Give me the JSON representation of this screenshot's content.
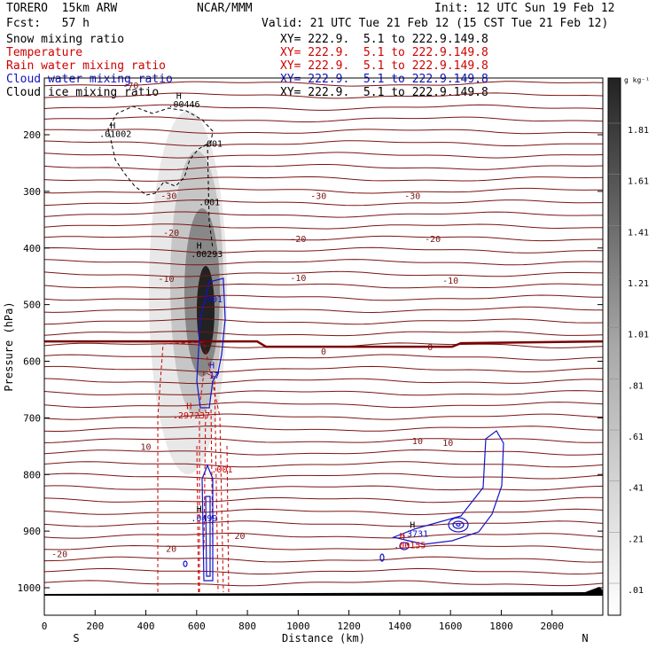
{
  "header": {
    "model": "TORERO  15km ARW",
    "center": "NCAR/MMM",
    "init": "Init: 12 UTC Sun 19 Feb 12",
    "fcst": "Fcst:   57 h",
    "valid": "Valid: 21 UTC Tue 21 Feb 12 (15 CST Tue 21 Feb 12)"
  },
  "legend": [
    {
      "name": "Snow mixing ratio",
      "xy": "XY= 222.9.  5.1 to 222.9.149.8",
      "color": "#000000"
    },
    {
      "name": "Temperature",
      "xy": "XY= 222.9.  5.1 to 222.9.149.8",
      "color": "#d00000"
    },
    {
      "name": "Rain water mixing ratio",
      "xy": "XY= 222.9.  5.1 to 222.9.149.8",
      "color": "#d00000"
    },
    {
      "name": "Cloud water mixing ratio",
      "xy": "XY= 222.9.  5.1 to 222.9.149.8",
      "color": "#1010c0"
    },
    {
      "name": "Cloud ice mixing ratio",
      "xy": "XY= 222.9.  5.1 to 222.9.149.8",
      "color": "#000000"
    }
  ],
  "colorbar": {
    "unit": "g kg⁻¹",
    "labels": [
      "1.81",
      "1.61",
      "1.41",
      "1.21",
      "1.01",
      ".81",
      ".61",
      ".41",
      ".21",
      ".01"
    ]
  },
  "chart_data": {
    "type": "contour",
    "title": "Vertical cross section",
    "xlabel": "Distance (km)",
    "ylabel": "Pressure (hPa)",
    "xlim": [
      0,
      2200
    ],
    "ylim": [
      1050,
      95
    ],
    "x_ticks": [
      "0",
      "200",
      "400",
      "600",
      "800",
      "1000",
      "1200",
      "1400",
      "1600",
      "1800",
      "2000"
    ],
    "y_ticks": [
      "200",
      "300",
      "400",
      "500",
      "600",
      "700",
      "800",
      "900",
      "1000"
    ],
    "x_end_labels": {
      "left": "S",
      "right": "N"
    },
    "temperature_contours": [
      {
        "value": -70,
        "p": 118
      },
      {
        "value": -30,
        "p": 320
      },
      {
        "value": -20,
        "p": 385
      },
      {
        "value": -10,
        "p": 460
      },
      {
        "value": 0,
        "p": 565
      },
      {
        "value": 10,
        "p": 750
      },
      {
        "value": 20,
        "p": 920
      }
    ],
    "temperature_labels": [
      {
        "text": "-70",
        "x": 340,
        "p": 112
      },
      {
        "text": "-30",
        "x": 490,
        "p": 307
      },
      {
        "text": "-30",
        "x": 1080,
        "p": 307
      },
      {
        "text": "-30",
        "x": 1450,
        "p": 307
      },
      {
        "text": "-20",
        "x": 500,
        "p": 372
      },
      {
        "text": "-20",
        "x": 1000,
        "p": 383
      },
      {
        "text": "-20",
        "x": 1530,
        "p": 383
      },
      {
        "text": "-10",
        "x": 480,
        "p": 454
      },
      {
        "text": "-10",
        "x": 1000,
        "p": 452
      },
      {
        "text": "-10",
        "x": 1600,
        "p": 457
      },
      {
        "text": "0",
        "x": 1100,
        "p": 582
      },
      {
        "text": "0",
        "x": 1520,
        "p": 574
      },
      {
        "text": "10",
        "x": 400,
        "p": 750
      },
      {
        "text": "10",
        "x": 1470,
        "p": 740
      },
      {
        "text": "10",
        "x": 1590,
        "p": 743
      },
      {
        "text": "20",
        "x": 500,
        "p": 930
      },
      {
        "text": "20",
        "x": 770,
        "p": 908
      },
      {
        "text": "-20",
        "x": 60,
        "p": 940
      }
    ],
    "snow_max": {
      "max_g_kg": 1.9,
      "x_km": 630,
      "p_hPa": 540
    },
    "annotations": [
      {
        "text": "H",
        "x": 530,
        "p": 130,
        "color": "#000000"
      },
      {
        "text": ".00446",
        "x": 550,
        "p": 145,
        "color": "#000000"
      },
      {
        "text": "H",
        "x": 270,
        "p": 183,
        "color": "#000000"
      },
      {
        "text": ".01002",
        "x": 280,
        "p": 198,
        "color": "#000000"
      },
      {
        "text": ".001",
        "x": 660,
        "p": 215,
        "color": "#000000"
      },
      {
        "text": ".001",
        "x": 650,
        "p": 318,
        "color": "#000000"
      },
      {
        "text": "H",
        "x": 610,
        "p": 395,
        "color": "#000000"
      },
      {
        "text": ".00293",
        "x": 640,
        "p": 410,
        "color": "#000000"
      },
      {
        "text": ".001",
        "x": 660,
        "p": 490,
        "color": "#1010c0"
      },
      {
        "text": "H",
        "x": 660,
        "p": 606,
        "color": "#1010c0"
      },
      {
        "text": "17",
        "x": 670,
        "p": 624,
        "color": "#1010c0"
      },
      {
        "text": "H",
        "x": 570,
        "p": 678,
        "color": "#d00000"
      },
      {
        "text": ".297237",
        "x": 580,
        "p": 695,
        "color": "#d00000"
      },
      {
        "text": ".001",
        "x": 700,
        "p": 790,
        "color": "#d00000"
      },
      {
        "text": "H",
        "x": 610,
        "p": 860,
        "color": "#000000"
      },
      {
        "text": ".0499",
        "x": 630,
        "p": 876,
        "color": "#1010c0"
      },
      {
        "text": "H",
        "x": 1450,
        "p": 888,
        "color": "#000000"
      },
      {
        "text": ".3731",
        "x": 1460,
        "p": 904,
        "color": "#1010c0"
      },
      {
        "text": "H",
        "x": 1410,
        "p": 908,
        "color": "#d00000"
      },
      {
        "text": ".00155",
        "x": 1440,
        "p": 924,
        "color": "#d00000"
      }
    ]
  }
}
